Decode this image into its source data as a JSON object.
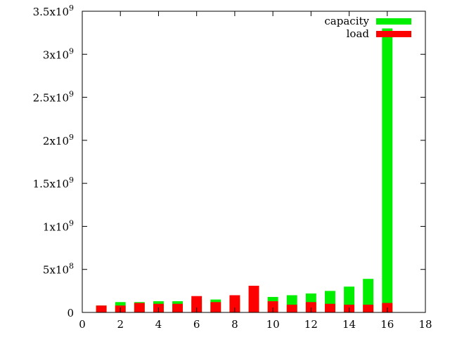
{
  "chart_data": {
    "type": "bar",
    "x": [
      1,
      2,
      3,
      4,
      5,
      6,
      7,
      8,
      9,
      10,
      11,
      12,
      13,
      14,
      15,
      16
    ],
    "series": [
      {
        "name": "capacity",
        "color": "#00ee00",
        "values": [
          80000000,
          120000000,
          120000000,
          130000000,
          130000000,
          150000000,
          150000000,
          160000000,
          160000000,
          180000000,
          200000000,
          220000000,
          250000000,
          300000000,
          390000000,
          3300000000
        ]
      },
      {
        "name": "load",
        "color": "#ff0000",
        "values": [
          80000000,
          80000000,
          110000000,
          100000000,
          100000000,
          190000000,
          120000000,
          200000000,
          310000000,
          130000000,
          90000000,
          120000000,
          100000000,
          90000000,
          90000000,
          110000000
        ]
      }
    ],
    "xlim": [
      0,
      18
    ],
    "ylim": [
      0,
      3500000000
    ],
    "x_ticks": [
      {
        "value": 0,
        "label": "0"
      },
      {
        "value": 2,
        "label": "2"
      },
      {
        "value": 4,
        "label": "4"
      },
      {
        "value": 6,
        "label": "6"
      },
      {
        "value": 8,
        "label": "8"
      },
      {
        "value": 10,
        "label": "10"
      },
      {
        "value": 12,
        "label": "12"
      },
      {
        "value": 14,
        "label": "14"
      },
      {
        "value": 16,
        "label": "16"
      },
      {
        "value": 18,
        "label": "18"
      }
    ],
    "y_ticks": [
      {
        "value": 0,
        "mantissa": "0",
        "exp": ""
      },
      {
        "value": 500000000,
        "mantissa": "5x10",
        "exp": "8"
      },
      {
        "value": 1000000000,
        "mantissa": "1x10",
        "exp": "9"
      },
      {
        "value": 1500000000,
        "mantissa": "1.5x10",
        "exp": "9"
      },
      {
        "value": 2000000000,
        "mantissa": "2x10",
        "exp": "9"
      },
      {
        "value": 2500000000,
        "mantissa": "2.5x10",
        "exp": "9"
      },
      {
        "value": 3000000000,
        "mantissa": "3x10",
        "exp": "9"
      },
      {
        "value": 3500000000,
        "mantissa": "3.5x10",
        "exp": "9"
      }
    ],
    "bar_width": 0.55,
    "grid": false,
    "legend_position": "top-right",
    "title": "",
    "xlabel": "",
    "ylabel": ""
  }
}
